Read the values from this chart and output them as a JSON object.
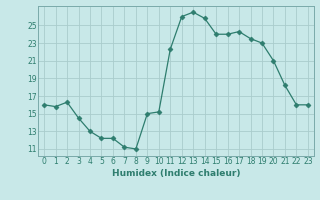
{
  "x": [
    0,
    1,
    2,
    3,
    4,
    5,
    6,
    7,
    8,
    9,
    10,
    11,
    12,
    13,
    14,
    15,
    16,
    17,
    18,
    19,
    20,
    21,
    22,
    23
  ],
  "y": [
    16.0,
    15.8,
    16.3,
    14.5,
    13.0,
    12.2,
    12.2,
    11.2,
    11.0,
    15.0,
    15.2,
    22.3,
    26.0,
    26.5,
    25.8,
    24.0,
    24.0,
    24.3,
    23.5,
    23.0,
    21.0,
    18.2,
    16.0,
    16.0
  ],
  "line_color": "#2e7d6e",
  "marker": "D",
  "marker_size": 2.5,
  "bg_color": "#c8e8e8",
  "grid_color": "#aacccc",
  "xlabel": "Humidex (Indice chaleur)",
  "yticks": [
    11,
    13,
    15,
    17,
    19,
    21,
    23,
    25
  ],
  "xticks": [
    0,
    1,
    2,
    3,
    4,
    5,
    6,
    7,
    8,
    9,
    10,
    11,
    12,
    13,
    14,
    15,
    16,
    17,
    18,
    19,
    20,
    21,
    22,
    23
  ],
  "xlim": [
    -0.5,
    23.5
  ],
  "ylim": [
    10.2,
    27.2
  ],
  "tick_fontsize": 5.5,
  "xlabel_fontsize": 6.5
}
